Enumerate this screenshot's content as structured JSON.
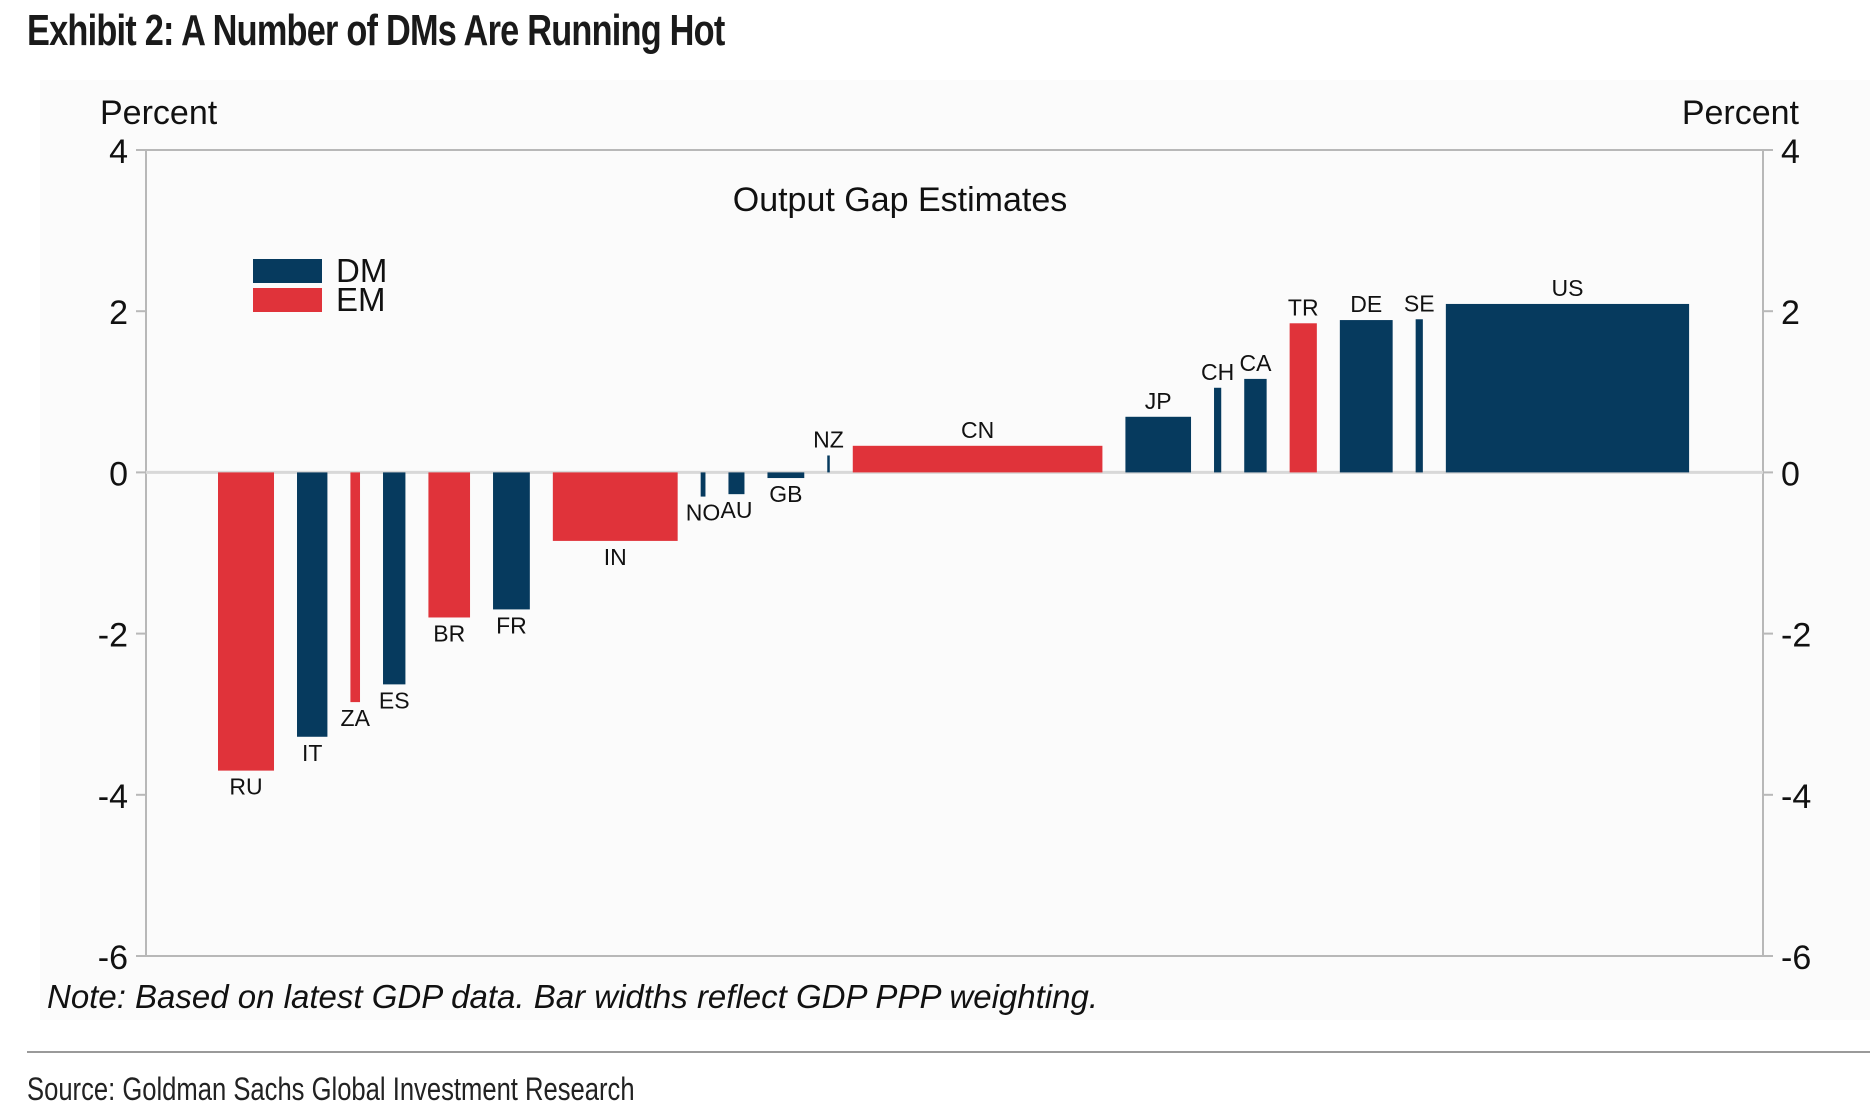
{
  "header": {
    "exhibit_title": "Exhibit 2: A Number of DMs Are Running Hot"
  },
  "footer": {
    "note": "Note: Based on latest GDP data. Bar widths reflect GDP PPP weighting.",
    "source": "Source: Goldman Sachs Global Investment Research"
  },
  "colors": {
    "DM": "#063a5e",
    "EM": "#e0333a",
    "axis": "#b8b8b8",
    "zero_line": "#d8d8d8"
  },
  "chart_data": {
    "type": "bar",
    "title": "Output Gap Estimates",
    "xlabel": "",
    "ylabel_left": "Percent",
    "ylabel_right": "Percent",
    "ylim": [
      -6,
      4
    ],
    "yticks": [
      4,
      2,
      0,
      -2,
      -4,
      -6
    ],
    "ytick_labels": [
      "4",
      "2",
      "0",
      "-2",
      "-4",
      "-6"
    ],
    "grid": false,
    "legend": {
      "placement": "top-left",
      "entries": [
        {
          "name": "DM",
          "color": "#063a5e"
        },
        {
          "name": "EM",
          "color": "#e0333a"
        }
      ]
    },
    "width_note": "Bar widths reflect GDP PPP weighting (relative weight units, estimated)",
    "categories": [
      "RU",
      "IT",
      "ZA",
      "ES",
      "BR",
      "FR",
      "IN",
      "NO",
      "AU",
      "GB",
      "NZ",
      "CN",
      "JP",
      "CH",
      "CA",
      "TR",
      "DE",
      "SE",
      "US"
    ],
    "series": [
      {
        "name": "Output gap",
        "bars": [
          {
            "label": "RU",
            "group": "EM",
            "value": -3.7,
            "weight": 3.5
          },
          {
            "label": "IT",
            "group": "DM",
            "value": -3.28,
            "weight": 1.9
          },
          {
            "label": "ZA",
            "group": "EM",
            "value": -2.85,
            "weight": 0.6
          },
          {
            "label": "ES",
            "group": "DM",
            "value": -2.63,
            "weight": 1.4
          },
          {
            "label": "BR",
            "group": "EM",
            "value": -1.8,
            "weight": 2.6
          },
          {
            "label": "FR",
            "group": "DM",
            "value": -1.7,
            "weight": 2.3
          },
          {
            "label": "IN",
            "group": "EM",
            "value": -0.85,
            "weight": 7.8
          },
          {
            "label": "NO",
            "group": "DM",
            "value": -0.3,
            "weight": 0.3
          },
          {
            "label": "AU",
            "group": "DM",
            "value": -0.27,
            "weight": 1.0
          },
          {
            "label": "GB",
            "group": "DM",
            "value": -0.07,
            "weight": 2.3
          },
          {
            "label": "NZ",
            "group": "DM",
            "value": 0.21,
            "weight": 0.15
          },
          {
            "label": "CN",
            "group": "EM",
            "value": 0.33,
            "weight": 15.6
          },
          {
            "label": "JP",
            "group": "DM",
            "value": 0.69,
            "weight": 4.1
          },
          {
            "label": "CH",
            "group": "DM",
            "value": 1.05,
            "weight": 0.45
          },
          {
            "label": "CA",
            "group": "DM",
            "value": 1.16,
            "weight": 1.4
          },
          {
            "label": "TR",
            "group": "EM",
            "value": 1.85,
            "weight": 1.7
          },
          {
            "label": "DE",
            "group": "DM",
            "value": 1.89,
            "weight": 3.3
          },
          {
            "label": "SE",
            "group": "DM",
            "value": 1.9,
            "weight": 0.45
          },
          {
            "label": "US",
            "group": "DM",
            "value": 2.09,
            "weight": 15.2
          }
        ]
      }
    ]
  }
}
